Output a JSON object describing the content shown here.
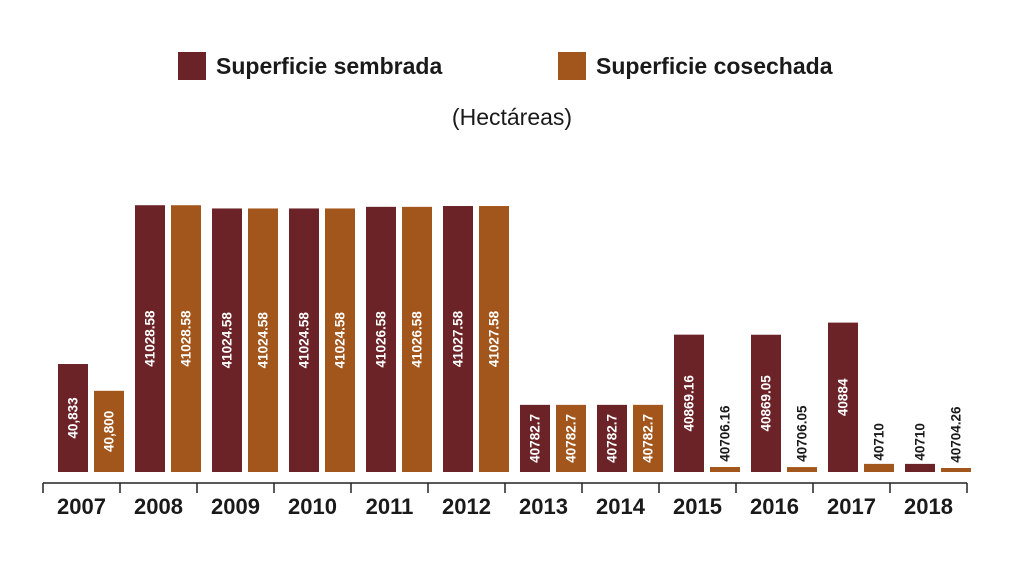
{
  "chart_data": {
    "type": "bar",
    "subtitle": "(Hectáreas)",
    "categories": [
      "2007",
      "2008",
      "2009",
      "2010",
      "2011",
      "2012",
      "2013",
      "2014",
      "2015",
      "2016",
      "2017",
      "2018"
    ],
    "series": [
      {
        "name": "Superficie sembrada",
        "color": "#6b2327",
        "values": [
          40833,
          41028.58,
          41024.58,
          41024.58,
          41026.58,
          41027.58,
          40782.7,
          40782.7,
          40869.16,
          40869.05,
          40884,
          40710
        ],
        "labels": [
          "40,833",
          "41028.58",
          "41024.58",
          "41024.58",
          "41026.58",
          "41027.58",
          "40782.7",
          "40782.7",
          "40869.16",
          "40869.05",
          "40884",
          "40710"
        ]
      },
      {
        "name": "Superficie cosechada",
        "color": "#a3561b",
        "values": [
          40800,
          41028.58,
          41024.58,
          41024.58,
          41026.58,
          41027.58,
          40782.7,
          40782.7,
          40706.16,
          40706.05,
          40710,
          40704.26
        ],
        "labels": [
          "40,800",
          "41028.58",
          "41024.58",
          "41024.58",
          "41026.58",
          "41027.58",
          "40782.7",
          "40782.7",
          "40706.16",
          "40706.05",
          "40710",
          "40704.26"
        ]
      }
    ],
    "ylim": [
      40700,
      41035
    ],
    "legend_position": "top-center",
    "grid": false
  }
}
